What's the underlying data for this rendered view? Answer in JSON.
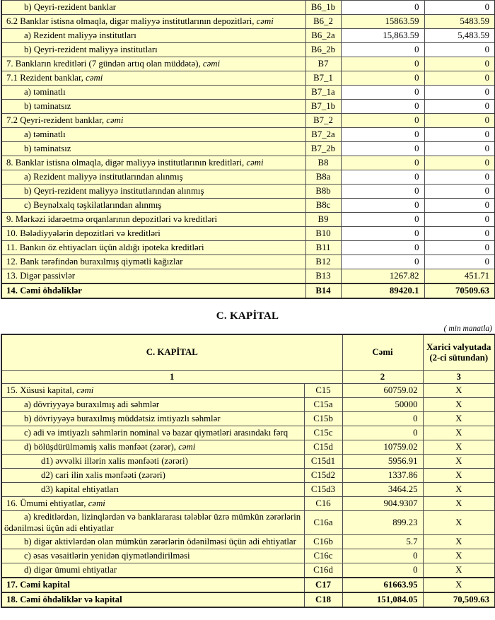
{
  "page": {
    "section_title": "C. KAPİTAL",
    "unit_note": "( min manatla)"
  },
  "colors": {
    "cell_yellow": "#FFFFCC",
    "cell_white": "#FFFFFF",
    "border_dark": "#2b2b2b"
  },
  "liabilities_table": {
    "rows": [
      {
        "label": "b) Qeyri-rezident banklar",
        "code": "B6_1b",
        "total": "0",
        "fx": "0",
        "indent": 1,
        "shade": false
      },
      {
        "label": "6.2 Banklar istisna olmaqla, digər maliyyə institutlarının depozitləri, ",
        "italic": "cəmi",
        "code": "B6_2",
        "total": "15863.59",
        "fx": "5483.59",
        "indent": 0,
        "shade": true
      },
      {
        "label": "a) Rezident maliyyə institutları",
        "code": "B6_2a",
        "total": "15,863.59",
        "fx": "5,483.59",
        "indent": 1,
        "shade": false
      },
      {
        "label": "b) Qeyri-rezident maliyyə institutları",
        "code": "B6_2b",
        "total": "0",
        "fx": "0",
        "indent": 1,
        "shade": false
      },
      {
        "label": "7. Bankların kreditləri (7 gündən artıq olan müddətə), ",
        "italic": "cəmi",
        "code": "B7",
        "total": "0",
        "fx": "0",
        "indent": 0,
        "shade": true
      },
      {
        "label": "7.1 Rezident banklar, ",
        "italic": "cəmi",
        "code": "B7_1",
        "total": "0",
        "fx": "0",
        "indent": 0,
        "shade": true
      },
      {
        "label": "a) təminatlı",
        "code": "B7_1a",
        "total": "0",
        "fx": "0",
        "indent": 1,
        "shade": false
      },
      {
        "label": "b) təminatsız",
        "code": "B7_1b",
        "total": "0",
        "fx": "0",
        "indent": 1,
        "shade": false
      },
      {
        "label": "7.2 Qeyri-rezident banklar, ",
        "italic": "cəmi",
        "code": "B7_2",
        "total": "0",
        "fx": "0",
        "indent": 0,
        "shade": true
      },
      {
        "label": "a) təminatlı",
        "code": "B7_2a",
        "total": "0",
        "fx": "0",
        "indent": 1,
        "shade": false
      },
      {
        "label": "b) təminatsız",
        "code": "B7_2b",
        "total": "0",
        "fx": "0",
        "indent": 1,
        "shade": false
      },
      {
        "label": "8. Banklar istisna olmaqla, digər maliyyə institutlarının kreditləri, ",
        "italic": "cəmi",
        "code": "B8",
        "total": "0",
        "fx": "0",
        "indent": 0,
        "shade": true
      },
      {
        "label": "a) Rezident maliyyə institutlarından alınmış",
        "code": "B8a",
        "total": "0",
        "fx": "0",
        "indent": 1,
        "shade": false
      },
      {
        "label": "b) Qeyri-rezident maliyyə institutlarından alınmış",
        "code": "B8b",
        "total": "0",
        "fx": "0",
        "indent": 1,
        "shade": false
      },
      {
        "label": "c) Beynəlxalq təşkilatlarından alınmış",
        "code": "B8c",
        "total": "0",
        "fx": "0",
        "indent": 1,
        "shade": false
      },
      {
        "label": "9. Mərkəzi idarəetmə orqanlarının depozitləri və kreditləri",
        "code": "B9",
        "total": "0",
        "fx": "0",
        "indent": 0,
        "shade": false
      },
      {
        "label": "10. Bələdiyyələrin depozitləri və kreditləri",
        "code": "B10",
        "total": "0",
        "fx": "0",
        "indent": 0,
        "shade": false
      },
      {
        "label": "11. Bankın öz ehtiyacları üçün aldığı ipoteka kreditləri",
        "code": "B11",
        "total": "0",
        "fx": "0",
        "indent": 0,
        "shade": false
      },
      {
        "label": "12. Bank tərəfindən buraxılmış qiymətli kağızlar",
        "code": "B12",
        "total": "0",
        "fx": "0",
        "indent": 0,
        "shade": false
      },
      {
        "label": "13. Digər passivlər",
        "code": "B13",
        "total": "1267.82",
        "fx": "451.71",
        "indent": 0,
        "shade": true
      },
      {
        "label": "14. Cəmi öhdəliklər",
        "code": "B14",
        "total": "89420.1",
        "fx": "70509.63",
        "indent": 0,
        "shade": true,
        "bold": true,
        "sep": true
      }
    ]
  },
  "capital_table": {
    "header": {
      "title_col": "C. KAPİTAL",
      "total_col": "Cəmi",
      "fx_col": "Xarici valyutada (2-ci sütundan)"
    },
    "numbering": {
      "c1": "1",
      "c2": "2",
      "c3": "3"
    },
    "rows": [
      {
        "label": "15. Xüsusi kapital, ",
        "italic": "cəmi",
        "code": "C15",
        "total": "60759.02",
        "fx": "X",
        "indent": 0,
        "shade": true
      },
      {
        "label": "a) dövriyyəyə buraxılmış adi səhmlər",
        "code": "C15a",
        "total": "50000",
        "fx": "X",
        "indent": 1,
        "shade": true
      },
      {
        "label": "b) dövriyyəyə buraxılmış müddətsiz imtiyazlı səhmlər",
        "code": "C15b",
        "total": "0",
        "fx": "X",
        "indent": 1,
        "shade": true
      },
      {
        "label": "c) adi və imtiyazlı səhmlərin nominal və bazar qiymətləri arasındakı fərq",
        "code": "C15c",
        "total": "0",
        "fx": "X",
        "indent": 1,
        "shade": true
      },
      {
        "label": "d) bölüşdürülməmiş xalis mənfəət (zərər), ",
        "italic": "cəmi",
        "code": "C15d",
        "total": "10759.02",
        "fx": "X",
        "indent": 1,
        "shade": true
      },
      {
        "label": "d1) əvvəlki illərin xalis mənfəəti (zərəri)",
        "code": "C15d1",
        "total": "5956.91",
        "fx": "X",
        "indent": 2,
        "shade": true
      },
      {
        "label": "d2) cari ilin xalis mənfəəti (zərəri)",
        "code": "C15d2",
        "total": "1337.86",
        "fx": "X",
        "indent": 2,
        "shade": true
      },
      {
        "label": "d3) kapital ehtiyatları",
        "code": "C15d3",
        "total": "3464.25",
        "fx": "X",
        "indent": 2,
        "shade": true
      },
      {
        "label": "16. Ümumi ehtiyatlar, ",
        "italic": "cəmi",
        "code": "C16",
        "total": "904.9307",
        "fx": "X",
        "indent": 0,
        "shade": true
      },
      {
        "label": "a) kreditlərdən, lizinqlərdən və banklararası  tələblər üzrə mümkün zərərlərin ödənilməsi üçün adi ehtiyatlar",
        "code": "C16a",
        "total": "899.23",
        "fx": "X",
        "indent": 1,
        "shade": true
      },
      {
        "label": "b) digər aktivlərdən olan mümkün zərərlərin ödənilməsi üçün adi ehtiyatlar",
        "code": "C16b",
        "total": "5.7",
        "fx": "X",
        "indent": 1,
        "shade": true
      },
      {
        "label": "c) əsas vəsaitlərin yenidən qiymətləndirilməsi",
        "code": "C16c",
        "total": "0",
        "fx": "X",
        "indent": 1,
        "shade": true
      },
      {
        "label": "d) digər ümumi ehtiyatlar",
        "code": "C16d",
        "total": "0",
        "fx": "X",
        "indent": 1,
        "shade": true
      },
      {
        "label": "17. Cəmi kapital",
        "code": "C17",
        "total": "61663.95",
        "fx": "X",
        "indent": 0,
        "shade": true,
        "bold": true,
        "sep": true
      },
      {
        "label": "18. Cəmi öhdəliklər və kapital",
        "code": "C18",
        "total": "151,084.05",
        "fx": "70,509.63",
        "indent": 0,
        "shade": true,
        "bold": true,
        "sep": true
      }
    ]
  }
}
